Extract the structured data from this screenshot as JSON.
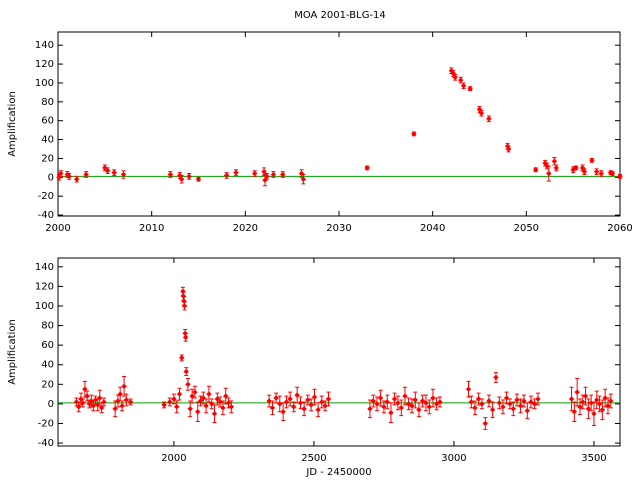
{
  "chart_data": [
    {
      "type": "scatter",
      "title": "MOA 2001-BLG-14",
      "y_label": "Amplification",
      "color": "#ff0000",
      "baseline": 1,
      "baseline_color": "#00a000",
      "xlim": [
        2000,
        2060
      ],
      "ylim": [
        -41,
        154
      ],
      "xticks": [
        2000,
        2010,
        2020,
        2030,
        2040,
        2050,
        2060
      ],
      "yticks": [
        -40,
        -20,
        0,
        20,
        40,
        60,
        80,
        100,
        120,
        140
      ],
      "x": [
        2000.1,
        2000.3,
        2001,
        2001.2,
        2002,
        2003,
        2005,
        2005.3,
        2006,
        2007,
        2012,
        2013,
        2013.2,
        2014,
        2015,
        2018,
        2019,
        2021,
        2022,
        2022.1,
        2022.3,
        2023,
        2024,
        2026,
        2026.2,
        2033,
        2038,
        2042,
        2042.2,
        2042.4,
        2043,
        2043.3,
        2044,
        2045,
        2045.2,
        2046,
        2048,
        2048.1,
        2051,
        2052,
        2052.2,
        2052.4,
        2053,
        2053.2,
        2055,
        2055.3,
        2056,
        2056.2,
        2057,
        2057.5,
        2058,
        2059,
        2059.2,
        2060
      ],
      "values": [
        0,
        4,
        3,
        1,
        -2,
        3,
        10,
        7,
        5,
        3,
        3,
        2,
        -2,
        1,
        -2,
        2,
        5,
        4,
        6,
        -3,
        1,
        3,
        3,
        4,
        -2,
        10,
        46,
        113,
        110,
        106,
        103,
        97,
        94,
        72,
        68,
        62,
        33,
        30,
        8,
        15,
        12,
        4,
        17,
        10,
        8,
        10,
        10,
        6,
        18,
        6,
        4,
        5,
        4,
        1
      ],
      "errors": [
        3,
        3,
        3,
        3,
        3,
        3,
        3,
        3,
        3,
        4,
        3,
        3,
        4,
        3,
        2,
        3,
        3,
        3,
        4,
        6,
        3,
        3,
        3,
        4,
        5,
        2,
        2,
        3,
        3,
        3,
        3,
        3,
        2,
        3,
        3,
        3,
        3,
        3,
        2,
        3,
        3,
        8,
        4,
        3,
        3,
        2,
        3,
        3,
        2,
        3,
        3,
        2,
        2,
        2
      ]
    },
    {
      "type": "scatter",
      "y_label": "Amplification",
      "x_label": "JD - 2450000",
      "color": "#ff0000",
      "baseline": 1,
      "baseline_color": "#00a000",
      "xlim": [
        1586,
        3593
      ],
      "ylim": [
        -43,
        149
      ],
      "xticks": [
        2000,
        2500,
        3000,
        3500
      ],
      "yticks": [
        -40,
        -20,
        0,
        20,
        40,
        60,
        80,
        100,
        120,
        140
      ],
      "x": [
        1652,
        1660,
        1668,
        1675,
        1682,
        1690,
        1698,
        1705,
        1712,
        1720,
        1728,
        1735,
        1742,
        1750,
        1790,
        1800,
        1808,
        1815,
        1822,
        1830,
        1845,
        1965,
        1985,
        2000,
        2010,
        2020,
        2028,
        2032,
        2034,
        2036,
        2038,
        2040,
        2042,
        2044,
        2050,
        2058,
        2065,
        2075,
        2085,
        2095,
        2105,
        2115,
        2125,
        2135,
        2145,
        2155,
        2165,
        2175,
        2185,
        2195,
        2205,
        2340,
        2352,
        2365,
        2378,
        2390,
        2402,
        2415,
        2428,
        2440,
        2452,
        2465,
        2478,
        2490,
        2502,
        2515,
        2528,
        2540,
        2552,
        2700,
        2712,
        2725,
        2738,
        2750,
        2762,
        2775,
        2788,
        2800,
        2812,
        2825,
        2838,
        2850,
        2862,
        2875,
        2888,
        2900,
        2912,
        2925,
        2938,
        2950,
        3052,
        3062,
        3075,
        3088,
        3100,
        3112,
        3125,
        3138,
        3150,
        3162,
        3175,
        3188,
        3200,
        3212,
        3225,
        3238,
        3250,
        3262,
        3275,
        3288,
        3300,
        3420,
        3430,
        3440,
        3450,
        3460,
        3470,
        3480,
        3490,
        3500,
        3510,
        3520,
        3530,
        3540,
        3550,
        3560
      ],
      "values": [
        2,
        -3,
        5,
        1,
        15,
        8,
        0,
        3,
        -2,
        4,
        -1,
        6,
        -4,
        2,
        -5,
        3,
        10,
        -2,
        18,
        4,
        2,
        -1,
        2,
        5,
        -3,
        10,
        47,
        115,
        110,
        105,
        100,
        72,
        68,
        33,
        20,
        -5,
        8,
        12,
        -8,
        3,
        6,
        -2,
        10,
        0,
        -10,
        5,
        2,
        -4,
        8,
        1,
        -3,
        3,
        -4,
        6,
        0,
        -8,
        2,
        5,
        -3,
        9,
        1,
        -5,
        4,
        -1,
        7,
        -6,
        2,
        -2,
        5,
        -5,
        3,
        0,
        6,
        -3,
        2,
        -9,
        5,
        1,
        -4,
        8,
        0,
        -2,
        4,
        -6,
        3,
        1,
        -3,
        6,
        0,
        2,
        15,
        2,
        -4,
        5,
        0,
        -20,
        3,
        -6,
        27,
        1,
        -3,
        6,
        0,
        -5,
        4,
        -2,
        3,
        -7,
        2,
        0,
        5,
        5,
        -8,
        12,
        -3,
        2,
        8,
        -5,
        1,
        -10,
        4,
        0,
        -6,
        6,
        -2,
        3
      ],
      "errors": [
        4,
        5,
        6,
        4,
        8,
        5,
        4,
        6,
        5,
        4,
        6,
        8,
        5,
        4,
        8,
        6,
        7,
        5,
        10,
        6,
        3,
        3,
        4,
        5,
        6,
        6,
        3,
        4,
        4,
        4,
        4,
        4,
        4,
        4,
        6,
        8,
        7,
        6,
        10,
        5,
        6,
        7,
        8,
        5,
        9,
        6,
        5,
        7,
        8,
        5,
        6,
        6,
        7,
        5,
        8,
        9,
        6,
        7,
        5,
        8,
        6,
        7,
        5,
        6,
        8,
        7,
        6,
        5,
        7,
        9,
        6,
        7,
        8,
        6,
        7,
        10,
        6,
        7,
        8,
        9,
        6,
        7,
        8,
        7,
        6,
        8,
        7,
        9,
        6,
        5,
        8,
        6,
        7,
        6,
        5,
        6,
        6,
        8,
        5,
        6,
        7,
        6,
        5,
        7,
        6,
        7,
        6,
        8,
        6,
        5,
        6,
        12,
        10,
        14,
        8,
        7,
        9,
        10,
        8,
        12,
        9,
        8,
        10,
        9,
        8,
        7
      ]
    }
  ]
}
